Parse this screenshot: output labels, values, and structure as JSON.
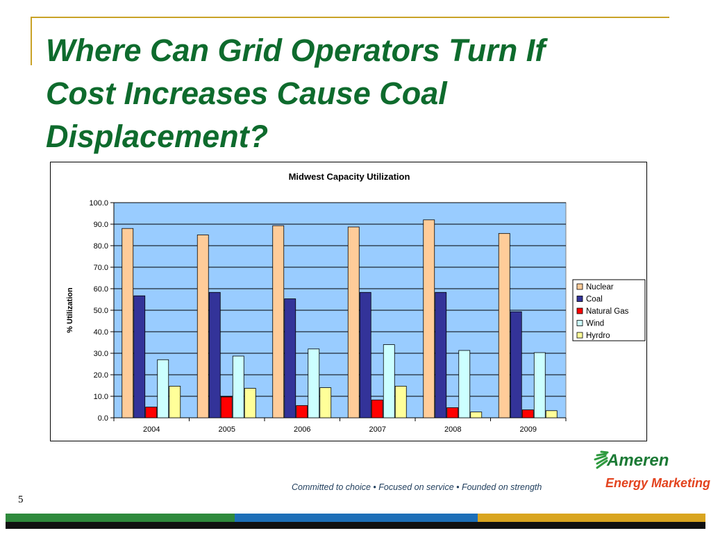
{
  "slide": {
    "title_lines": [
      "Where Can Grid Operators Turn If",
      "Cost Increases Cause Coal",
      "Displacement?"
    ],
    "tagline": "Committed to choice  •  Focused on service  •  Founded on strength",
    "page_number": "5",
    "logo": {
      "line1": "Ameren",
      "line2": "Energy Marketing"
    }
  },
  "colors": {
    "title": "#0e6b2d",
    "plot_background": "#99ccff",
    "nuclear": "#ffcc99",
    "coal": "#333399",
    "natural_gas": "#ff0000",
    "wind": "#ccffff",
    "hydro": "#ffff99"
  },
  "chart_data": {
    "type": "bar",
    "title": "Midwest Capacity Utilization",
    "xlabel": "",
    "ylabel": "% Utilization",
    "ylim": [
      0,
      100
    ],
    "yticks": [
      "0.0",
      "10.0",
      "20.0",
      "30.0",
      "40.0",
      "50.0",
      "60.0",
      "70.0",
      "80.0",
      "90.0",
      "100.0"
    ],
    "grid": true,
    "legend_position": "right",
    "categories": [
      "2004",
      "2005",
      "2006",
      "2007",
      "2008",
      "2009"
    ],
    "series": [
      {
        "name": "Nuclear",
        "color": "#ffcc99",
        "values": [
          88.0,
          85.0,
          89.3,
          88.7,
          92.0,
          85.7
        ]
      },
      {
        "name": "Coal",
        "color": "#333399",
        "values": [
          56.7,
          58.3,
          55.3,
          58.3,
          58.3,
          49.3
        ]
      },
      {
        "name": "Natural Gas",
        "color": "#ff0000",
        "values": [
          5.0,
          9.7,
          5.7,
          8.3,
          4.7,
          3.7
        ]
      },
      {
        "name": "Wind",
        "color": "#ccffff",
        "values": [
          27.0,
          28.7,
          32.0,
          34.0,
          31.3,
          30.3
        ]
      },
      {
        "name": "Hyrdro",
        "color": "#ffff99",
        "values": [
          14.7,
          13.7,
          14.0,
          14.7,
          2.7,
          3.3
        ]
      }
    ]
  }
}
